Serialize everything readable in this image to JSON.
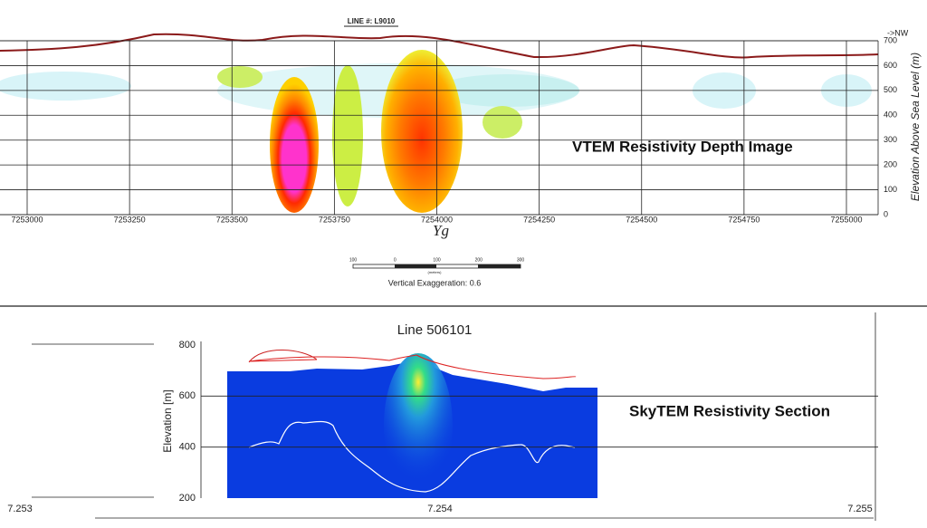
{
  "top": {
    "line_label": "LINE #:  L9010",
    "direction": "->NW",
    "y_axis_title": "Elevation Above Sea Level (m)",
    "x_ticks": [
      7253000,
      7253250,
      7253500,
      7253750,
      7254000,
      7254250,
      7254500,
      7254750,
      7255000
    ],
    "y_ticks": [
      0,
      100,
      200,
      300,
      400,
      500,
      600,
      700
    ],
    "annotation": "VTEM Resistivity Depth Image",
    "marker": "Yg"
  },
  "scale_bar": {
    "labels": [
      "100",
      "0",
      "100",
      "200",
      "300"
    ],
    "unit": "(meters)",
    "caption": "Vertical Exaggeration: 0.6"
  },
  "bottom": {
    "title": "Line 506101",
    "y_axis_title": "Elevation [m]",
    "y_ticks": [
      200,
      400,
      600,
      800
    ],
    "x_ticks": [
      7.253,
      7.254,
      7.255
    ],
    "annotation": "SkyTEM Resistivity Section"
  }
}
